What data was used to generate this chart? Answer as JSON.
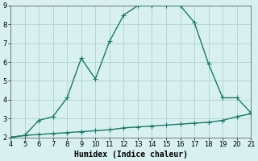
{
  "xlabel": "Humidex (Indice chaleur)",
  "xlim": [
    4,
    21
  ],
  "ylim": [
    2,
    9
  ],
  "xticks": [
    4,
    5,
    6,
    7,
    8,
    9,
    10,
    11,
    12,
    13,
    14,
    15,
    16,
    17,
    18,
    19,
    20,
    21
  ],
  "yticks": [
    2,
    3,
    4,
    5,
    6,
    7,
    8,
    9
  ],
  "curve_x": [
    4,
    5,
    6,
    7,
    8,
    9,
    10,
    11,
    12,
    13,
    14,
    15,
    16,
    17,
    18,
    19,
    20,
    21
  ],
  "curve_y": [
    2.0,
    2.1,
    2.9,
    3.1,
    4.1,
    6.2,
    5.1,
    7.1,
    8.5,
    9.0,
    9.0,
    9.0,
    9.0,
    8.1,
    5.9,
    4.1,
    4.1,
    3.3
  ],
  "line_x": [
    4,
    5,
    6,
    7,
    8,
    9,
    10,
    11,
    12,
    13,
    14,
    15,
    16,
    17,
    18,
    19,
    20,
    21
  ],
  "line_y": [
    2.0,
    2.1,
    2.15,
    2.2,
    2.25,
    2.3,
    2.35,
    2.4,
    2.5,
    2.55,
    2.6,
    2.65,
    2.7,
    2.75,
    2.8,
    2.9,
    3.1,
    3.25
  ],
  "color": "#1a7a6a",
  "bg_color": "#d8f0f0",
  "grid_color": "#aed4cc",
  "linewidth": 1.0,
  "markersize": 4,
  "tick_fontsize": 6,
  "xlabel_fontsize": 7
}
